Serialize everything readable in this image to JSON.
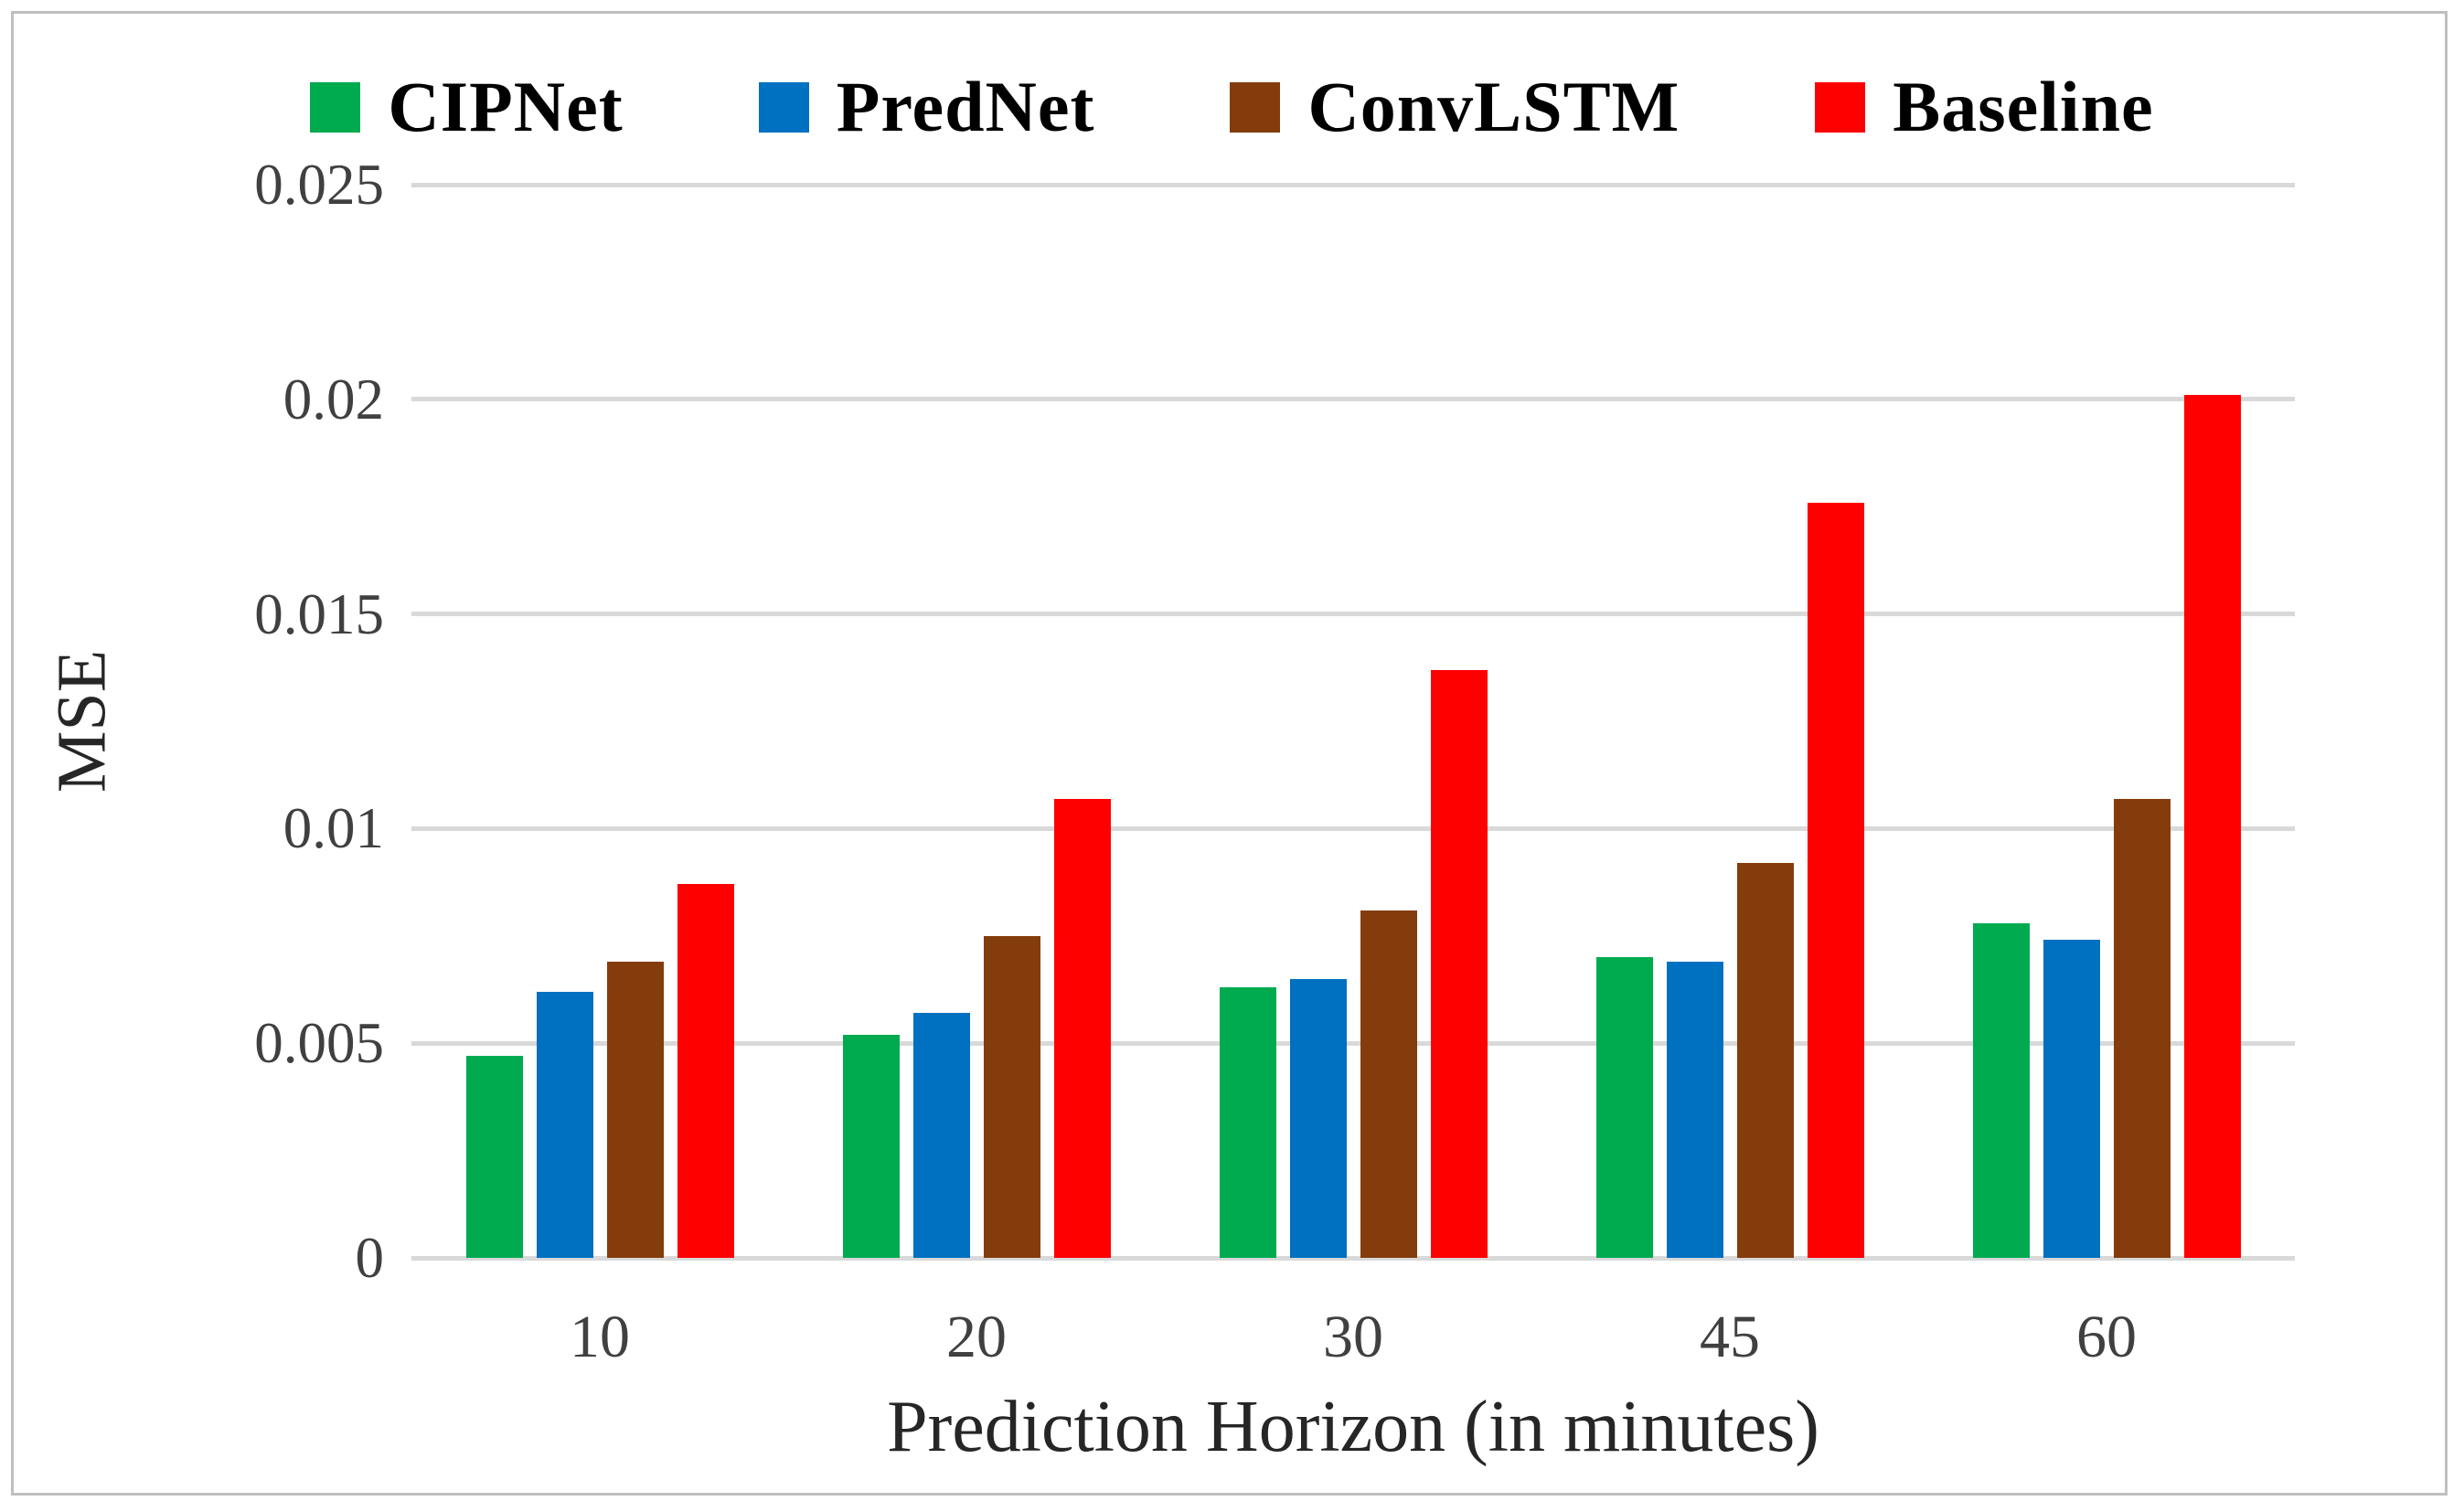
{
  "chart_data": {
    "type": "bar",
    "title": "",
    "xlabel": "Prediction Horizon (in minutes)",
    "ylabel": "MSE",
    "categories": [
      "10",
      "20",
      "30",
      "45",
      "60"
    ],
    "series": [
      {
        "name": "CIPNet",
        "color": "#00AB50",
        "values": [
          0.0047,
          0.0052,
          0.0063,
          0.007,
          0.0078
        ]
      },
      {
        "name": "PredNet",
        "color": "#0070C0",
        "values": [
          0.0062,
          0.0057,
          0.0065,
          0.0069,
          0.0074
        ]
      },
      {
        "name": "ConvLSTM",
        "color": "#843C0C",
        "values": [
          0.0069,
          0.0075,
          0.0081,
          0.0092,
          0.0107
        ]
      },
      {
        "name": "Baseline",
        "color": "#FF0000",
        "values": [
          0.0087,
          0.0107,
          0.0137,
          0.0176,
          0.0201
        ]
      }
    ],
    "ylim": [
      0,
      0.025
    ],
    "yticks": [
      0,
      0.005,
      0.01,
      0.015,
      0.02,
      0.025
    ],
    "ytick_labels": [
      "0",
      "0.005",
      "0.01",
      "0.015",
      "0.02",
      "0.025"
    ],
    "grid": "horizontal",
    "legend_position": "top"
  },
  "style_colors": {
    "gridline": "#d9d9d9",
    "frame_border": "#bfbfbf",
    "tick_text": "#404040",
    "title_text": "#262626",
    "legend_text": "#000000"
  }
}
